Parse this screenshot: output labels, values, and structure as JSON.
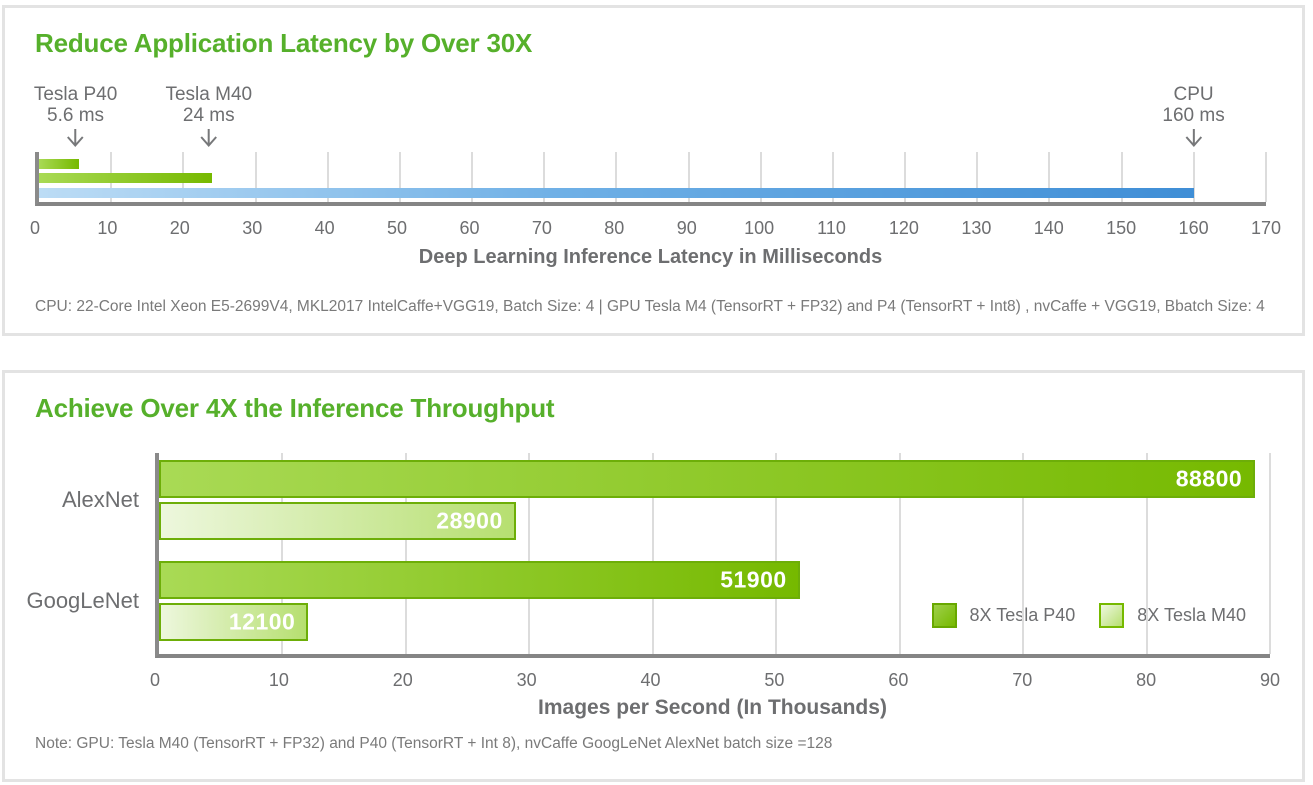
{
  "colors": {
    "nvidia_green": "#76b900",
    "title_green": "#56b02b",
    "bar_border_green": "#6dae08",
    "green_gradient_start": "#a9da55",
    "m40_gradient_start": "#edf7dd",
    "m40_gradient_end": "#b6df70",
    "cpu_blue_start": "#bcdcf5",
    "cpu_blue_end": "#3f8ed6",
    "text_gray": "#6d6e70",
    "footnote_gray": "#7a7a7a",
    "axis_gray": "#8a8a8a",
    "grid_gray": "#dcdcdc"
  },
  "chart_data": [
    {
      "type": "bar",
      "orientation": "horizontal",
      "title": "Reduce Application Latency by Over 30X",
      "xlabel": "Deep Learning Inference Latency in Milliseconds",
      "xlim": [
        0,
        170
      ],
      "xticks": [
        0,
        10,
        20,
        30,
        40,
        50,
        60,
        70,
        80,
        90,
        100,
        110,
        120,
        130,
        140,
        150,
        160,
        170
      ],
      "grid": true,
      "bars": [
        {
          "label": "Tesla P40",
          "value": 5.6,
          "value_label": "5.6 ms",
          "color_style": "green"
        },
        {
          "label": "Tesla M40",
          "value": 24,
          "value_label": "24 ms",
          "color_style": "green"
        },
        {
          "label": "CPU",
          "value": 160,
          "value_label": "160 ms",
          "color_style": "blue"
        }
      ],
      "footnote": "CPU: 22-Core Intel Xeon E5-2699V4, MKL2017 IntelCaffe+VGG19, Batch Size: 4  |  GPU Tesla M4 (TensorRT + FP32) and P4 (TensorRT + Int8) , nvCaffe + VGG19, Bbatch Size: 4"
    },
    {
      "type": "bar",
      "orientation": "horizontal",
      "title": "Achieve Over 4X the Inference Throughput",
      "xlabel": "Images per Second (In Thousands)",
      "xlim": [
        0,
        90
      ],
      "xticks": [
        0,
        10,
        20,
        30,
        40,
        50,
        60,
        70,
        80,
        90
      ],
      "value_divisor": 1000,
      "grid": true,
      "categories": [
        "AlexNet",
        "GoogLeNet"
      ],
      "series": [
        {
          "name": "8X Tesla P40",
          "style": "p40",
          "values": [
            88800,
            51900
          ]
        },
        {
          "name": "8X Tesla M40",
          "style": "m40",
          "values": [
            28900,
            12100
          ]
        }
      ],
      "legend_position": "bottom-right",
      "note": "Note: GPU: Tesla M40 (TensorRT + FP32) and P40 (TensorRT + Int 8), nvCaffe GoogLeNet AlexNet batch size =128"
    }
  ]
}
